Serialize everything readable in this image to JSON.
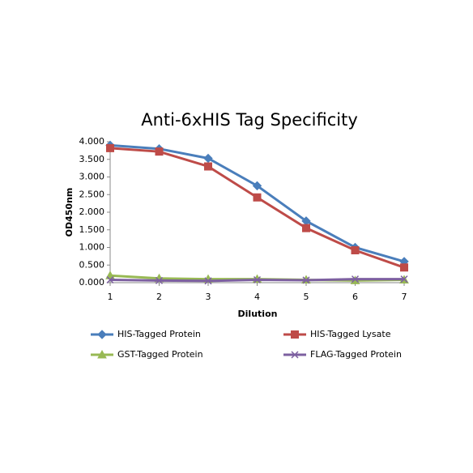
{
  "chart_data": {
    "type": "line",
    "title": "Anti-6xHIS Tag Specificity",
    "xlabel": "Dilution",
    "ylabel": "OD450nm",
    "x": [
      1,
      2,
      3,
      4,
      5,
      6,
      7
    ],
    "xlim": [
      1,
      7
    ],
    "xticks": [
      1,
      2,
      3,
      4,
      5,
      6,
      7
    ],
    "ylim": [
      0,
      4
    ],
    "yticks": [
      {
        "value": 0,
        "label": "0.000"
      },
      {
        "value": 0.5,
        "label": "0.500"
      },
      {
        "value": 1,
        "label": "1.000"
      },
      {
        "value": 1.5,
        "label": "1.500"
      },
      {
        "value": 2,
        "label": "2.000"
      },
      {
        "value": 2.5,
        "label": "2.500"
      },
      {
        "value": 3,
        "label": "3.000"
      },
      {
        "value": 3.5,
        "label": "3.500"
      },
      {
        "value": 4,
        "label": "4.000"
      }
    ],
    "grid": false,
    "legend": "bottom",
    "series": [
      {
        "name": "HIS-Tagged Protein",
        "color": "#4a7ebb",
        "marker": "diamond",
        "values": [
          3.9,
          3.8,
          3.53,
          2.75,
          1.75,
          1.0,
          0.6
        ]
      },
      {
        "name": "HIS-Tagged Lysate",
        "color": "#be4b48",
        "marker": "square",
        "values": [
          3.82,
          3.72,
          3.3,
          2.42,
          1.55,
          0.92,
          0.43
        ]
      },
      {
        "name": "GST-Tagged Protein",
        "color": "#98b954",
        "marker": "triangle",
        "values": [
          0.2,
          0.12,
          0.1,
          0.1,
          0.08,
          0.06,
          0.08
        ]
      },
      {
        "name": "FLAG-Tagged Protein",
        "color": "#7d60a0",
        "marker": "x",
        "values": [
          0.08,
          0.06,
          0.05,
          0.08,
          0.07,
          0.1,
          0.1
        ]
      }
    ]
  }
}
